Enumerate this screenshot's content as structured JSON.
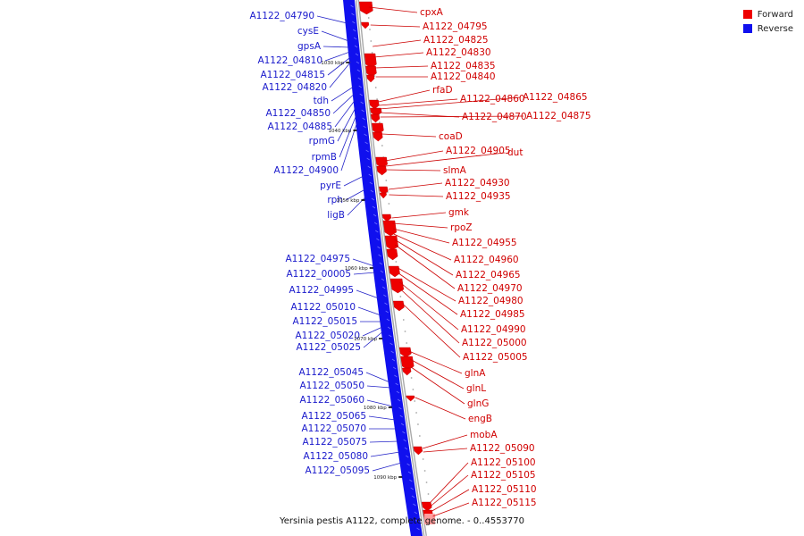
{
  "legend": {
    "items": [
      {
        "label": "Forward",
        "color": "#ee0000"
      },
      {
        "label": "Reverse",
        "color": "#1010ee"
      }
    ]
  },
  "caption": "Yersinia pestis A1122, complete genome. - 0..4553770",
  "colors": {
    "forward": "#ee0000",
    "reverse": "#1010ee",
    "backbone": "#a9a9a9"
  },
  "tick_labels": [
    "1030 kbp",
    "1040 kbp",
    "1050 kbp",
    "1060 kbp",
    "1070 kbp",
    "1080 kbp",
    "1090 kbp"
  ],
  "reverse_genes": [
    "A1122_04790",
    "cysE",
    "gpsA",
    "A1122_04810",
    "A1122_04815",
    "A1122_04820",
    "tdh",
    "A1122_04850",
    "A1122_04885",
    "rpmG",
    "rpmB",
    "A1122_04900",
    "pyrE",
    "rph",
    "ligB",
    "A1122_04975",
    "A1122_00005",
    "A1122_04995",
    "A1122_05010",
    "A1122_05015",
    "A1122_05020",
    "A1122_05025",
    "A1122_05045",
    "A1122_05050",
    "A1122_05060",
    "A1122_05065",
    "A1122_05070",
    "A1122_05075",
    "A1122_05080",
    "A1122_05095"
  ],
  "forward_genes": [
    "cpxA",
    "A1122_04795",
    "A1122_04825",
    "A1122_04830",
    "A1122_04835",
    "A1122_04840",
    "rfaD",
    "A1122_04860",
    "A1122_04865",
    "A1122_04870",
    "A1122_04875",
    "coaD",
    "A1122_04905",
    "dut",
    "slmA",
    "A1122_04930",
    "A1122_04935",
    "gmk",
    "rpoZ",
    "A1122_04955",
    "A1122_04960",
    "A1122_04965",
    "A1122_04970",
    "A1122_04980",
    "A1122_04985",
    "A1122_04990",
    "A1122_05000",
    "A1122_05005",
    "glnA",
    "glnL",
    "glnG",
    "engB",
    "mobA",
    "A1122_05090",
    "A1122_05100",
    "A1122_05105",
    "A1122_05110",
    "A1122_05115"
  ]
}
